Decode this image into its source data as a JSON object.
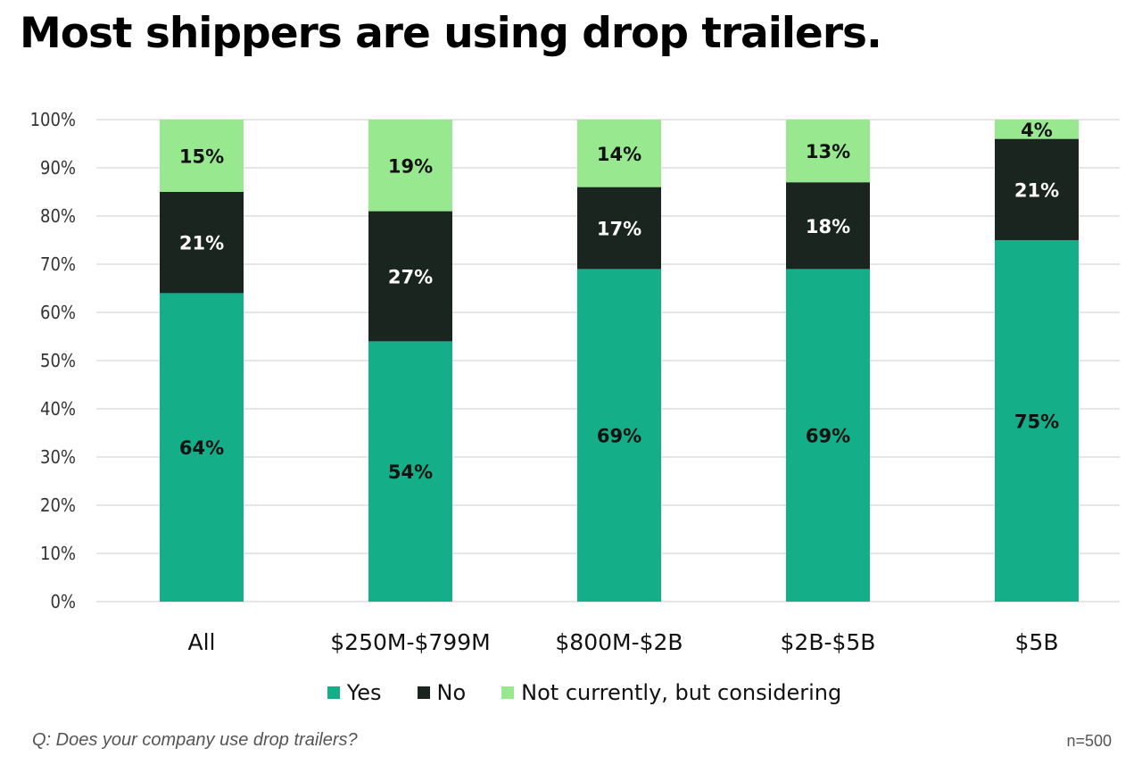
{
  "title": "Most shippers are using drop trailers.",
  "question": "Q: Does your company use drop trailers?",
  "sample": "n=500",
  "chart_data": {
    "type": "bar",
    "stacked": true,
    "categories": [
      "All",
      "$250M-$799M",
      "$800M-$2B",
      "$2B-$5B",
      "$5B"
    ],
    "series": [
      {
        "name": "Yes",
        "color": "#14ae88",
        "values": [
          64,
          54,
          69,
          69,
          75
        ]
      },
      {
        "name": "No",
        "color": "#1b2520",
        "values": [
          21,
          27,
          17,
          18,
          21
        ]
      },
      {
        "name": "Not currently, but considering",
        "color": "#98e890",
        "values": [
          15,
          19,
          14,
          13,
          4
        ]
      }
    ],
    "ylim": [
      0,
      100
    ],
    "yticks": [
      "0%",
      "10%",
      "20%",
      "30%",
      "40%",
      "50%",
      "60%",
      "70%",
      "80%",
      "90%",
      "100%"
    ],
    "grid": true,
    "legend": "bottom"
  }
}
